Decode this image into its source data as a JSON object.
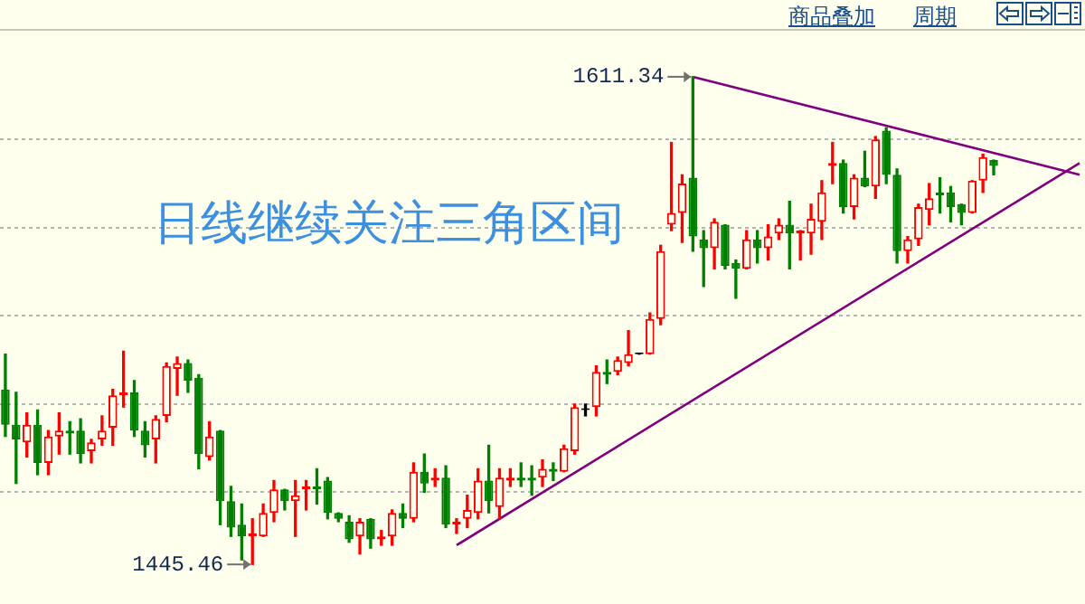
{
  "chart_data": {
    "type": "candlestick",
    "title": "日线继续关注三角区间",
    "annotations": [
      "1611.34",
      "1445.46",
      "商品叠加",
      "周期"
    ],
    "categories": [
      null,
      null,
      null,
      null,
      null,
      null,
      null,
      null,
      null,
      null,
      null,
      null,
      null,
      null,
      null,
      null,
      null,
      null,
      null,
      null,
      null,
      null,
      null,
      null,
      null,
      null,
      null,
      null,
      null,
      null,
      null,
      null,
      null,
      null,
      null,
      null,
      null,
      null,
      null,
      null,
      null,
      null,
      null,
      null,
      null,
      null,
      null,
      null,
      null,
      null,
      null,
      null,
      null,
      null,
      null,
      null,
      null,
      null,
      null,
      null,
      null,
      null,
      null,
      null,
      null,
      null,
      null,
      null,
      null,
      null,
      null,
      null,
      null,
      null,
      null,
      null,
      null,
      null,
      null,
      null,
      null,
      null,
      null,
      null,
      null,
      null,
      null,
      null,
      null,
      null,
      null,
      null,
      null,
      null,
      null,
      null,
      null,
      null,
      null,
      null,
      null
    ],
    "ohlc": [
      [
        1505,
        1517,
        1489,
        1493
      ],
      [
        1493,
        1504,
        1473,
        1488
      ],
      [
        1487,
        1497,
        1482,
        1493
      ],
      [
        1493,
        1498,
        1476,
        1480
      ],
      [
        1480,
        1491,
        1476,
        1489
      ],
      [
        1489,
        1497,
        1483,
        1491
      ],
      [
        1491,
        1494,
        1483,
        1490
      ],
      [
        1491,
        1495,
        1480,
        1483
      ],
      [
        1484,
        1488,
        1480,
        1487
      ],
      [
        1488,
        1496,
        1486,
        1491
      ],
      [
        1492,
        1505,
        1486,
        1503
      ],
      [
        1503,
        1518,
        1499,
        1504
      ],
      [
        1504,
        1508,
        1489,
        1491
      ],
      [
        1491,
        1494,
        1482,
        1486
      ],
      [
        1488,
        1496,
        1480,
        1495
      ],
      [
        1496,
        1514,
        1494,
        1513
      ],
      [
        1512,
        1516,
        1503,
        1514
      ],
      [
        1514,
        1515,
        1504,
        1508
      ],
      [
        1509,
        1510,
        1478,
        1483
      ],
      [
        1482,
        1494,
        1481,
        1489
      ],
      [
        1491,
        1491,
        1459,
        1467
      ],
      [
        1467,
        1472,
        1455,
        1458
      ],
      [
        1459,
        1466,
        1447,
        1455
      ],
      [
        1455,
        1461,
        1445.46,
        1456
      ],
      [
        1455,
        1466,
        1455,
        1463
      ],
      [
        1463,
        1474,
        1460,
        1471
      ],
      [
        1471,
        1471,
        1464,
        1467
      ],
      [
        1467,
        1474,
        1455,
        1469
      ],
      [
        1471,
        1474,
        1464,
        1472
      ],
      [
        1472,
        1478,
        1466,
        1471
      ],
      [
        1474,
        1475,
        1461,
        1463
      ],
      [
        1463,
        1463,
        1460,
        1461
      ],
      [
        1460,
        1462,
        1453,
        1454
      ],
      [
        1455,
        1461,
        1449,
        1460
      ],
      [
        1461,
        1461,
        1451,
        1454
      ],
      [
        1454,
        1457,
        1452,
        1455
      ],
      [
        1455,
        1464,
        1452,
        1463
      ],
      [
        1463,
        1466,
        1458,
        1461
      ],
      [
        1461,
        1480,
        1460,
        1477
      ],
      [
        1477,
        1483,
        1470,
        1473
      ],
      [
        1474,
        1478,
        1472,
        1475
      ],
      [
        1475,
        1479,
        1458,
        1459
      ],
      [
        1459,
        1461,
        1456,
        1460
      ],
      [
        1461,
        1469,
        1458,
        1464
      ],
      [
        1463,
        1478,
        1461,
        1474
      ],
      [
        1474,
        1486,
        1463,
        1467
      ],
      [
        1465,
        1478,
        1461,
        1475
      ],
      [
        1474,
        1478,
        1472,
        1475
      ],
      [
        1475,
        1480,
        1472,
        1474
      ],
      [
        1475,
        1479,
        1469,
        1474
      ],
      [
        1475,
        1481,
        1472,
        1478
      ],
      [
        1478,
        1480,
        1474,
        1477
      ],
      [
        1477,
        1486,
        1477,
        1485
      ],
      [
        1484,
        1500,
        1483,
        1499
      ],
      [
        1498,
        1500,
        1496,
        1498
      ],
      [
        1499,
        1513,
        1496,
        1511
      ],
      [
        1511,
        1515,
        1507,
        1510
      ],
      [
        1511,
        1516,
        1510,
        1515
      ],
      [
        1514,
        1525,
        1513,
        1517
      ],
      [
        1517,
        1517,
        1517,
        1517
      ],
      [
        1517,
        1531,
        1517,
        1529
      ],
      [
        1529,
        1554,
        1527,
        1552
      ],
      [
        1561,
        1589,
        1559,
        1565
      ],
      [
        1565,
        1578,
        1555,
        1575
      ],
      [
        1577,
        1611.34,
        1552,
        1557
      ],
      [
        1556,
        1559,
        1540,
        1553
      ],
      [
        1553,
        1563,
        1546,
        1562
      ],
      [
        1561,
        1561,
        1546,
        1547
      ],
      [
        1548,
        1549,
        1536,
        1546
      ],
      [
        1546,
        1559,
        1546,
        1556
      ],
      [
        1556,
        1559,
        1548,
        1553
      ],
      [
        1553,
        1561,
        1549,
        1557
      ],
      [
        1558,
        1563,
        1556,
        1561
      ],
      [
        1561,
        1569,
        1546,
        1558
      ],
      [
        1558,
        1559,
        1549,
        1559
      ],
      [
        1558,
        1568,
        1551,
        1563
      ],
      [
        1562,
        1576,
        1556,
        1572
      ],
      [
        1581,
        1589,
        1575,
        1582
      ],
      [
        1582,
        1583,
        1565,
        1567
      ],
      [
        1567,
        1578,
        1563,
        1577
      ],
      [
        1577,
        1586,
        1574,
        1574
      ],
      [
        1574,
        1591,
        1570,
        1590
      ],
      [
        1593,
        1594,
        1575,
        1578
      ],
      [
        1578,
        1580,
        1548,
        1552
      ],
      [
        1552,
        1557,
        1548,
        1556
      ],
      [
        1556,
        1568,
        1554,
        1567
      ],
      [
        1566,
        1575,
        1561,
        1570
      ],
      [
        1572,
        1577,
        1565,
        1571
      ],
      [
        1572,
        1574,
        1562,
        1567
      ],
      [
        1568,
        1568,
        1561,
        1565
      ],
      [
        1565,
        1576,
        1565,
        1576
      ],
      [
        1576,
        1585,
        1572,
        1584
      ],
      [
        1583,
        1583,
        1578,
        1581
      ],
      null,
      null,
      null,
      null,
      null,
      null,
      null,
      null
    ],
    "colors": [
      "#008000",
      "#008000",
      "#ff0000",
      "#008000",
      "#ff0000",
      "#ff0000",
      "#008000",
      "#008000",
      "#ff0000",
      "#ff0000",
      "#ff0000",
      "#ff0000",
      "#008000",
      "#008000",
      "#ff0000",
      "#ff0000",
      "#ff0000",
      "#008000",
      "#008000",
      "#ff0000",
      "#008000",
      "#008000",
      "#008000",
      "#ff0000",
      "#ff0000",
      "#ff0000",
      "#008000",
      "#ff0000",
      "#ff0000",
      "#008000",
      "#008000",
      "#008000",
      "#008000",
      "#ff0000",
      "#008000",
      "#ff0000",
      "#ff0000",
      "#008000",
      "#ff0000",
      "#008000",
      "#ff0000",
      "#008000",
      "#ff0000",
      "#ff0000",
      "#ff0000",
      "#008000",
      "#ff0000",
      "#ff0000",
      "#008000",
      "#008000",
      "#ff0000",
      "#008000",
      "#ff0000",
      "#ff0000",
      "#000000",
      "#ff0000",
      "#008000",
      "#ff0000",
      "#ff0000",
      "#000000",
      "#ff0000",
      "#ff0000",
      "#ff0000",
      "#ff0000",
      "#008000",
      "#008000",
      "#ff0000",
      "#008000",
      "#008000",
      "#ff0000",
      "#008000",
      "#ff0000",
      "#ff0000",
      "#008000",
      "#ff0000",
      "#ff0000",
      "#ff0000",
      "#ff0000",
      "#008000",
      "#ff0000",
      "#008000",
      "#ff0000",
      "#008000",
      "#008000",
      "#ff0000",
      "#ff0000",
      "#ff0000",
      "#008000",
      "#008000",
      "#008000",
      "#ff0000",
      "#ff0000",
      "#008000",
      null,
      null,
      null,
      null,
      null,
      null,
      null,
      null
    ],
    "series": [
      {
        "type": "line",
        "color": "#800080",
        "values": [
          null,
          null,
          null,
          null,
          null,
          null,
          null,
          null,
          null,
          null,
          null,
          null,
          null,
          null,
          null,
          null,
          null,
          null,
          null,
          null,
          null,
          null,
          null,
          null,
          null,
          null,
          null,
          null,
          null,
          null,
          null,
          null,
          null,
          null,
          null,
          null,
          null,
          null,
          null,
          null,
          null,
          null,
          null,
          null,
          null,
          null,
          null,
          null,
          null,
          null,
          null,
          null,
          null,
          null,
          null,
          null,
          null,
          null,
          null,
          null,
          null,
          null,
          null,
          null,
          1611.34,
          null,
          null,
          null,
          null,
          null,
          null,
          null,
          null,
          null,
          null,
          null,
          null,
          null,
          null,
          null,
          null,
          null,
          null,
          null,
          null,
          null,
          null,
          null,
          null,
          null,
          null,
          null,
          null,
          null,
          null,
          null,
          null,
          null,
          null,
          null,
          1578
        ]
      },
      {
        "type": "line",
        "color": "#800080",
        "values": [
          null,
          null,
          null,
          null,
          null,
          null,
          null,
          null,
          null,
          null,
          null,
          null,
          null,
          null,
          null,
          null,
          null,
          null,
          null,
          null,
          null,
          null,
          null,
          null,
          null,
          null,
          null,
          null,
          null,
          null,
          null,
          null,
          null,
          null,
          null,
          null,
          null,
          null,
          null,
          null,
          null,
          null,
          1452,
          null,
          null,
          null,
          null,
          null,
          null,
          null,
          null,
          null,
          null,
          null,
          null,
          null,
          null,
          null,
          null,
          null,
          null,
          null,
          null,
          null,
          null,
          null,
          null,
          null,
          null,
          null,
          null,
          null,
          null,
          null,
          null,
          null,
          null,
          null,
          null,
          null,
          null,
          null,
          null,
          null,
          null,
          null,
          null,
          null,
          null,
          null,
          null,
          null,
          null,
          null,
          null,
          null,
          null,
          null,
          null,
          null,
          1582
        ]
      }
    ],
    "ylim": [
      1432,
      1627
    ],
    "yticks": [
      {
        "value": 1470,
        "label": null
      },
      {
        "value": 1500,
        "label": null
      },
      {
        "value": 1530,
        "label": null
      },
      {
        "value": 1560,
        "label": null
      },
      {
        "value": 1590,
        "label": null
      }
    ],
    "grid": "y",
    "tick_labels": false,
    "legend": false,
    "marker": "none"
  }
}
